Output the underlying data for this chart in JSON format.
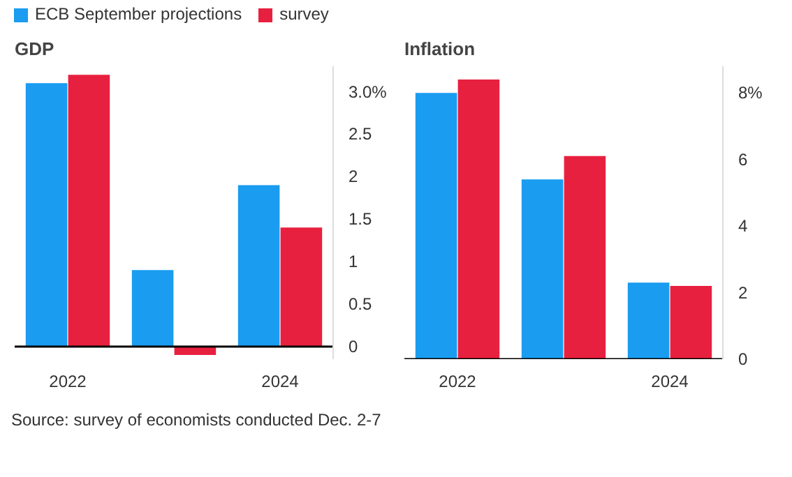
{
  "chart_data": [
    {
      "type": "bar",
      "title": "GDP",
      "categories": [
        "2022",
        null,
        "2024"
      ],
      "series": [
        {
          "name": "ECB September projections",
          "color": "#1a9cf0",
          "values": [
            3.1,
            0.9,
            1.9
          ]
        },
        {
          "name": "survey",
          "color": "#e8203f",
          "values": [
            3.2,
            -0.1,
            1.4
          ]
        }
      ],
      "ylim": [
        -0.15,
        3.3
      ],
      "yticks": [
        0,
        0.5,
        1,
        1.5,
        2,
        2.5,
        {
          "value": 3,
          "label": "3.0%"
        }
      ],
      "grid": false,
      "legend": "top",
      "annotations": [
        "Source: survey of economists conducted Dec. 2-7"
      ]
    },
    {
      "type": "bar",
      "title": "Inflation",
      "categories": [
        "2022",
        null,
        "2024"
      ],
      "series": [
        {
          "color": "#1a9cf0",
          "values": [
            8.0,
            5.4,
            2.3
          ]
        },
        {
          "color": "#e8203f",
          "values": [
            8.4,
            6.1,
            2.2
          ]
        }
      ],
      "ylim": [
        0,
        8.8
      ],
      "yticks": [
        0,
        2,
        4,
        6,
        {
          "value": 8,
          "label": "8%"
        }
      ],
      "grid": false
    }
  ]
}
